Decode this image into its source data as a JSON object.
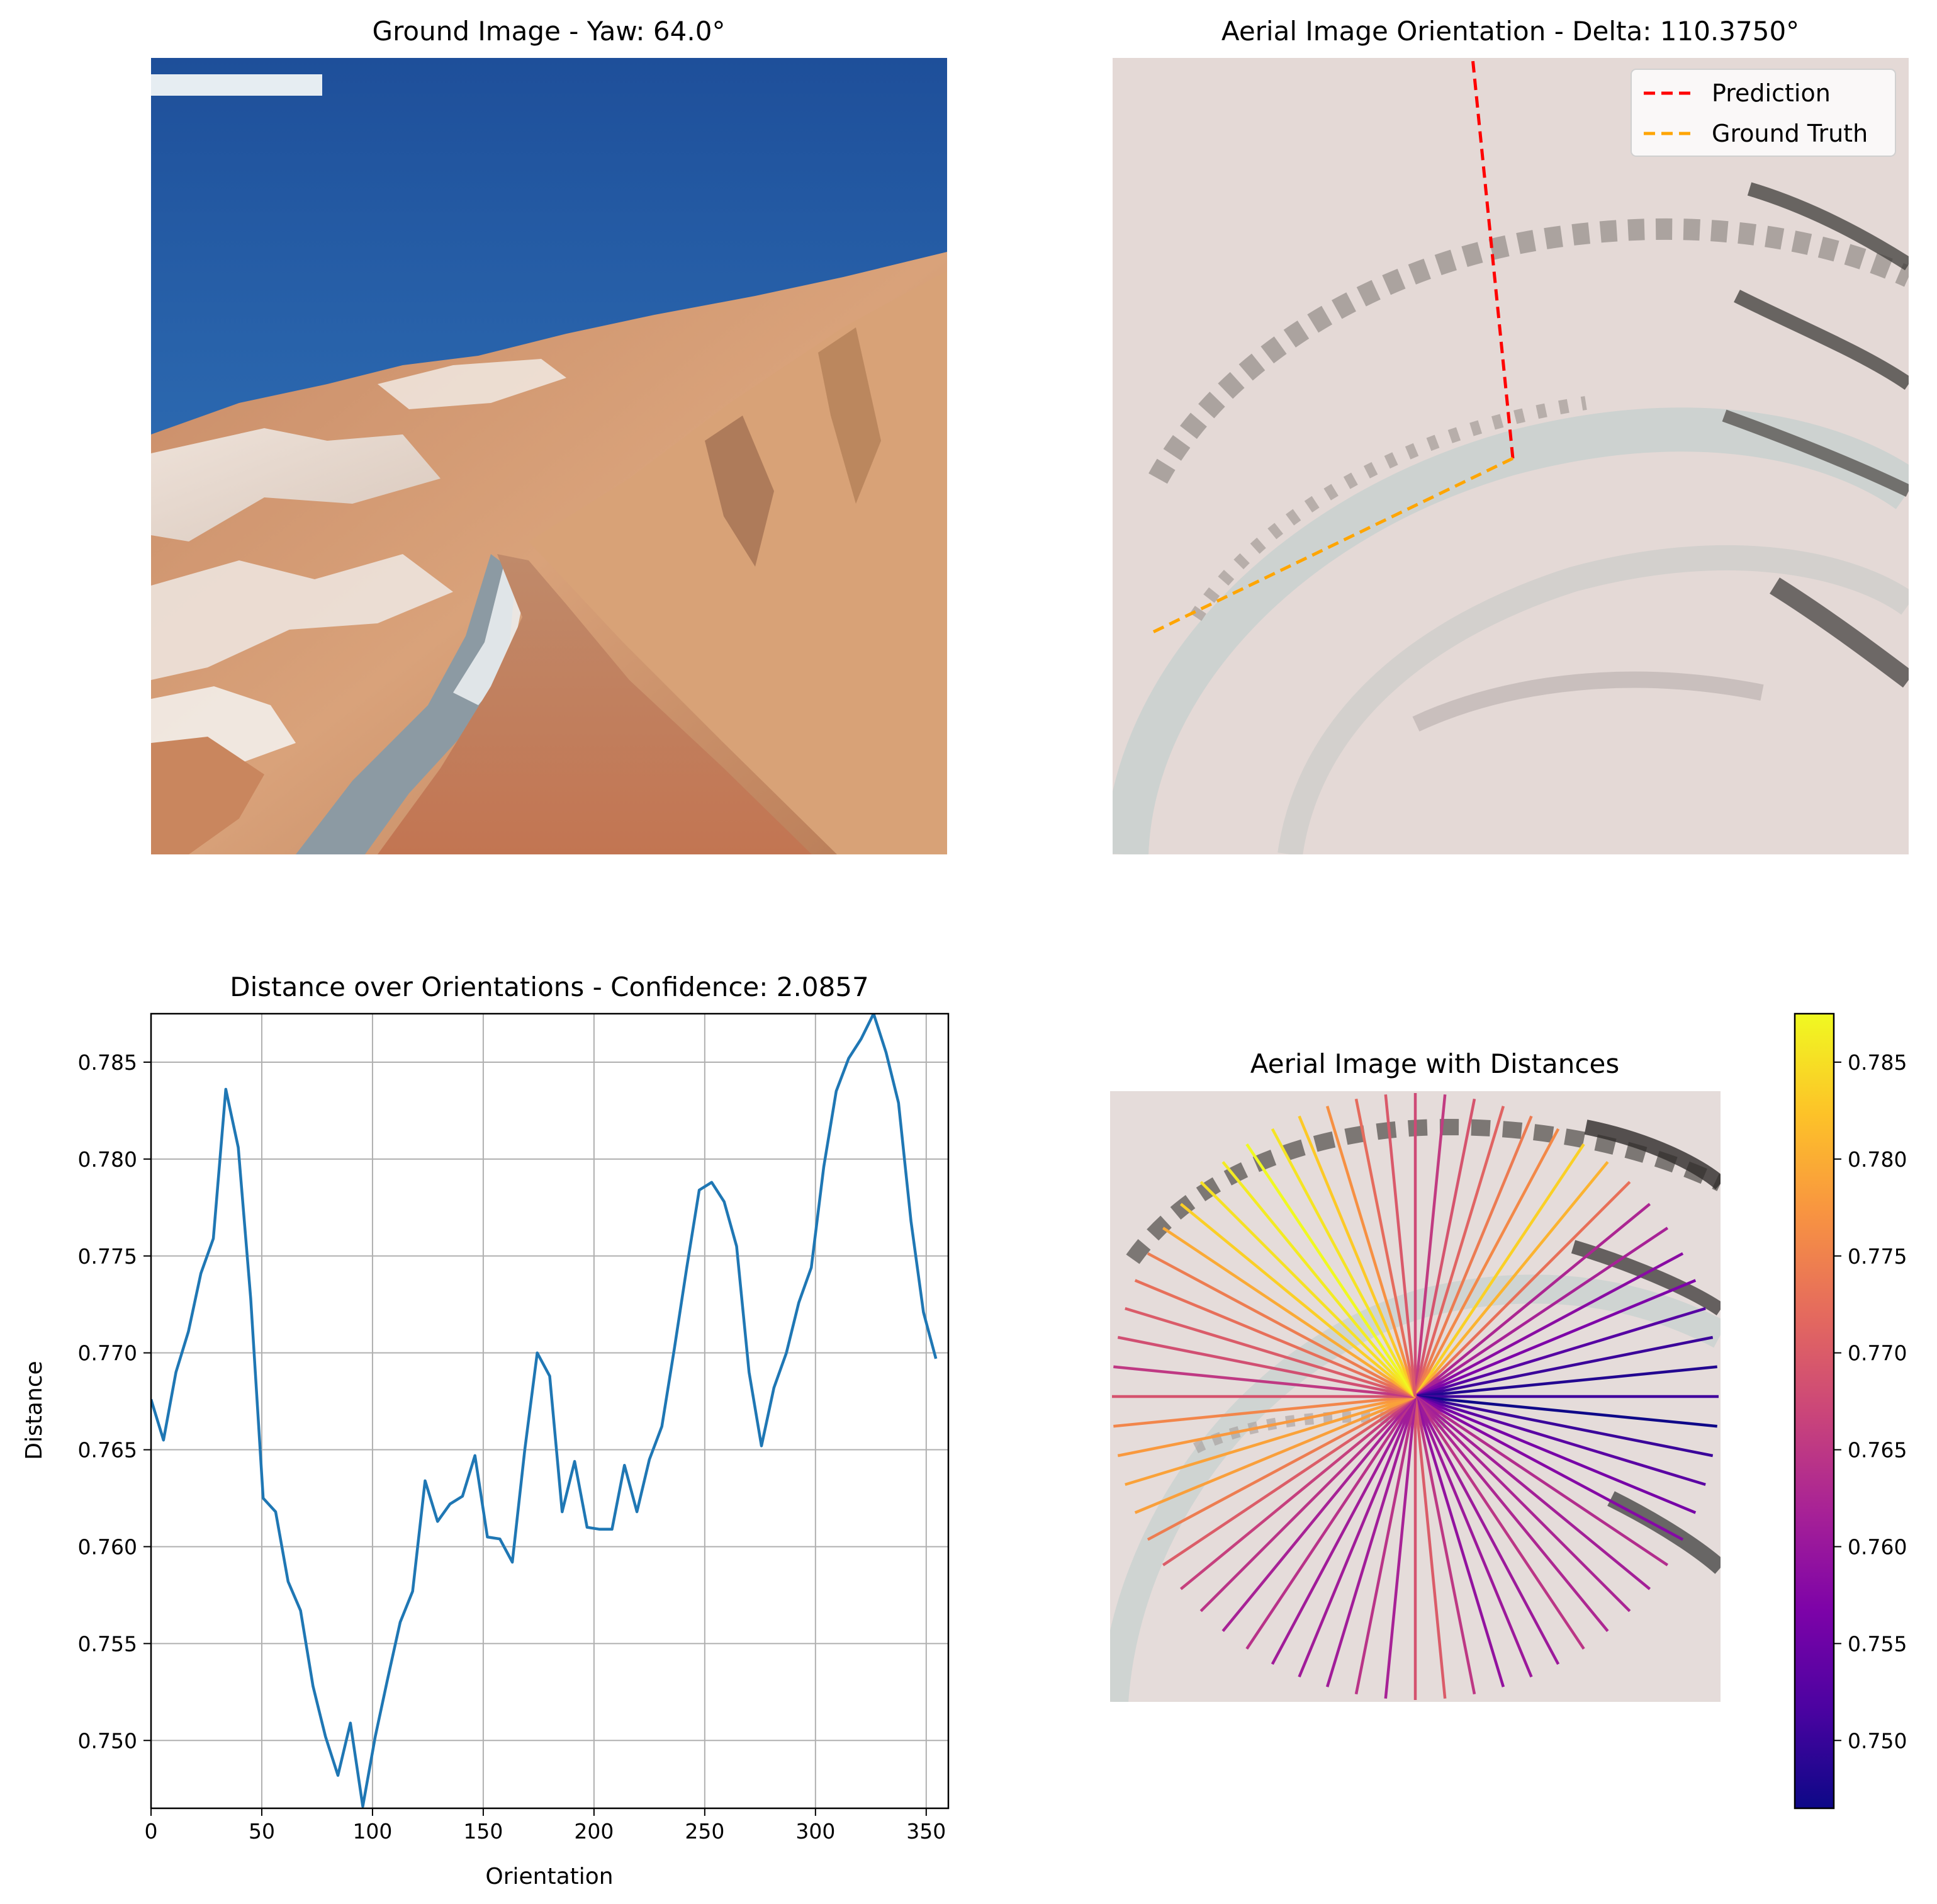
{
  "panels": {
    "ground": {
      "title": "Ground Image - Yaw: 64.0°"
    },
    "aerial": {
      "title": "Aerial Image Orientation - Delta: 110.3750°",
      "legend": [
        {
          "label": "Prediction",
          "color": "#ff0000"
        },
        {
          "label": "Ground Truth",
          "color": "#ffa500"
        }
      ]
    },
    "distance": {
      "title": "Distance over Orientations - Confidence: 2.0857"
    },
    "rays": {
      "title": "Aerial Image with Distances"
    }
  },
  "chart_data": {
    "type": "line",
    "xlabel": "Orientation",
    "ylabel": "Distance",
    "xlim": [
      0,
      360
    ],
    "ylim": [
      0.7465,
      0.7875
    ],
    "xticks": [
      "0",
      "50",
      "100",
      "150",
      "200",
      "250",
      "300",
      "350"
    ],
    "yticks": [
      "0.750",
      "0.755",
      "0.760",
      "0.765",
      "0.770",
      "0.775",
      "0.780",
      "0.785"
    ],
    "grid": true,
    "color": "#1f77b4",
    "x": [
      0,
      5.625,
      11.25,
      16.875,
      22.5,
      28.125,
      33.75,
      39.375,
      45,
      50.625,
      56.25,
      61.875,
      67.5,
      73.125,
      78.75,
      84.375,
      90,
      95.625,
      101.25,
      106.875,
      112.5,
      118.125,
      123.75,
      129.375,
      135,
      140.625,
      146.25,
      151.875,
      157.5,
      163.125,
      168.75,
      174.375,
      180,
      185.625,
      191.25,
      196.875,
      202.5,
      208.125,
      213.75,
      219.375,
      225,
      230.625,
      236.25,
      241.875,
      247.5,
      253.125,
      258.75,
      264.375,
      270,
      275.625,
      281.25,
      286.875,
      292.5,
      298.125,
      303.75,
      309.375,
      315,
      320.625,
      326.25,
      331.875,
      337.5,
      343.125,
      348.75,
      354.375
    ],
    "values": [
      0.7676,
      0.7655,
      0.769,
      0.7711,
      0.7741,
      0.7759,
      0.7836,
      0.7806,
      0.7728,
      0.7625,
      0.7618,
      0.7582,
      0.7567,
      0.7528,
      0.7502,
      0.7482,
      0.7509,
      0.7466,
      0.7502,
      0.7532,
      0.7561,
      0.7577,
      0.7634,
      0.7613,
      0.7622,
      0.7626,
      0.7647,
      0.7605,
      0.7604,
      0.7592,
      0.765,
      0.77,
      0.7688,
      0.7618,
      0.7644,
      0.761,
      0.7609,
      0.7609,
      0.7642,
      0.7618,
      0.7645,
      0.7662,
      0.7702,
      0.7744,
      0.7784,
      0.7788,
      0.7778,
      0.7755,
      0.769,
      0.7652,
      0.7682,
      0.77,
      0.7726,
      0.7744,
      0.7796,
      0.7835,
      0.7852,
      0.7862,
      0.7875,
      0.7855,
      0.7829,
      0.7768,
      0.7721,
      0.7697
    ]
  },
  "colorbar": {
    "colormap": "plasma",
    "ticks": [
      "0.750",
      "0.755",
      "0.760",
      "0.765",
      "0.770",
      "0.775",
      "0.780",
      "0.785"
    ]
  }
}
